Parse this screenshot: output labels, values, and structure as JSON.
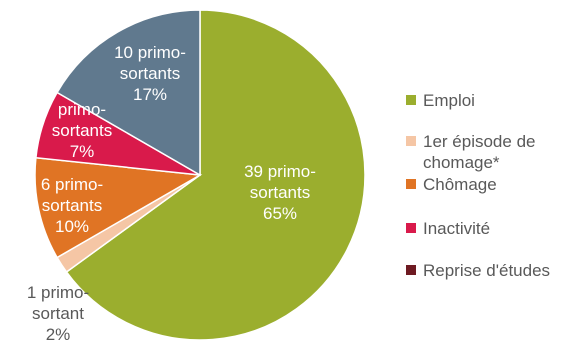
{
  "chart_data": {
    "type": "pie",
    "title": "",
    "slices": [
      {
        "legend": "Emploi",
        "label_lines": [
          "39 primo-",
          "sortants",
          "65%"
        ],
        "value": 39,
        "percent": 65,
        "color": "#9BAE2E",
        "label_tone": "light"
      },
      {
        "legend": "1er épisode de chomage*",
        "legend_lines": [
          "1er épisode de",
          "chomage*"
        ],
        "label_lines": [
          "1 primo-",
          "sortant",
          "2%"
        ],
        "value": 1,
        "percent": 2,
        "color": "#F5C6A5",
        "label_tone": "dark"
      },
      {
        "legend": "Chômage",
        "label_lines": [
          "6 primo-",
          "sortants",
          "10%"
        ],
        "value": 6,
        "percent": 10,
        "color": "#E07424",
        "label_tone": "light"
      },
      {
        "legend": "Inactivité",
        "label_lines": [
          "primo-",
          "sortants",
          "7%"
        ],
        "value": 4,
        "percent": 7,
        "color": "#D91A4B",
        "label_tone": "light"
      },
      {
        "legend": "Reprise d'études",
        "label_lines": [],
        "value": 0,
        "percent": 0,
        "color": "#6E1A22",
        "label_tone": "light"
      },
      {
        "legend": "",
        "label_lines": [
          "10 primo-",
          "sortants",
          "17%"
        ],
        "value": 10,
        "percent": 17,
        "color": "#60798E",
        "label_tone": "light"
      }
    ],
    "legend_position": "right"
  }
}
